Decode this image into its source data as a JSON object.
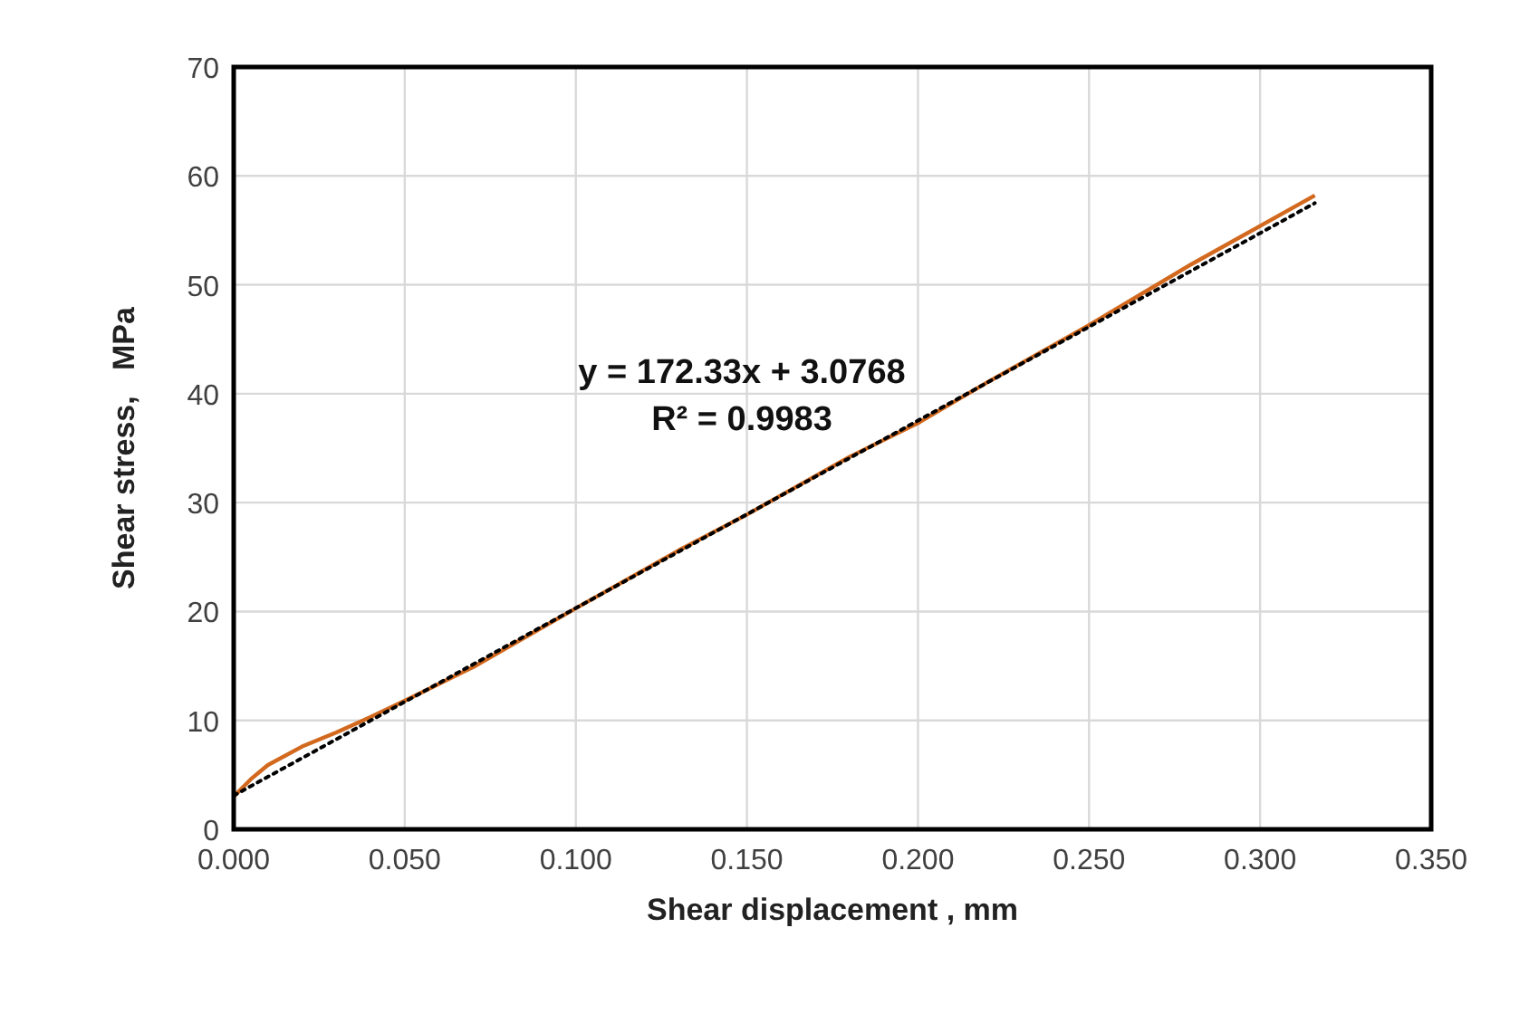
{
  "chart_data": {
    "type": "line",
    "xlabel": "Shear displacement , mm",
    "ylabel": "Shear stress,   MPa",
    "annotations": [
      "y = 172.33x + 3.0768",
      "R² = 0.9983"
    ],
    "xlim": [
      0,
      0.35
    ],
    "ylim": [
      0,
      70
    ],
    "xticks": [
      {
        "value": 0,
        "label": "0.000"
      },
      {
        "value": 0.05,
        "label": "0.050"
      },
      {
        "value": 0.1,
        "label": "0.100"
      },
      {
        "value": 0.15,
        "label": "0.150"
      },
      {
        "value": 0.2,
        "label": "0.200"
      },
      {
        "value": 0.25,
        "label": "0.250"
      },
      {
        "value": 0.3,
        "label": "0.300"
      },
      {
        "value": 0.35,
        "label": "0.350"
      }
    ],
    "yticks": [
      0,
      10,
      20,
      30,
      40,
      50,
      60,
      70
    ],
    "grid": true,
    "marker": "none",
    "series": [
      {
        "color": "#d2691e",
        "line_style": "solid",
        "x": [
          0,
          0.005,
          0.01,
          0.02,
          0.03,
          0.04,
          0.05,
          0.07,
          0.1,
          0.13,
          0.15,
          0.18,
          0.2,
          0.22,
          0.25,
          0.28,
          0.3,
          0.316
        ],
        "values": [
          3.0,
          4.6,
          5.9,
          7.6,
          8.9,
          10.3,
          11.8,
          14.9,
          20.3,
          25.6,
          28.9,
          34.2,
          37.3,
          41.0,
          46.3,
          51.9,
          55.4,
          58.2
        ]
      },
      {
        "color": "#000000",
        "line_style": "dotted",
        "x": [
          0,
          0.316
        ],
        "values": [
          3.1,
          57.5
        ]
      }
    ]
  }
}
